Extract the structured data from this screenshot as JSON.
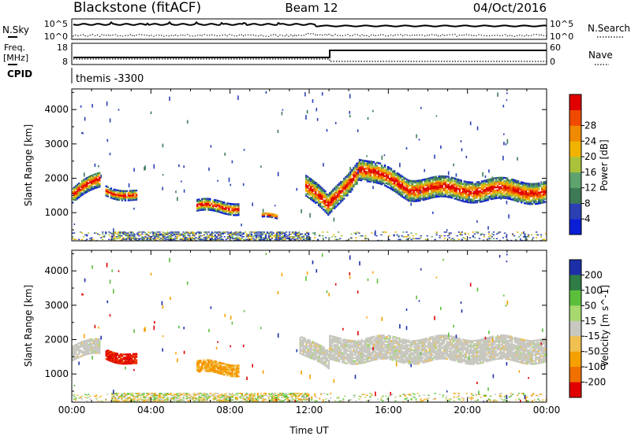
{
  "header": {
    "title_left": "Blackstone (fitACF)",
    "title_center": "Beam 12",
    "title_right": "04/Oct/2016"
  },
  "noise_panel": {
    "left_label": "N.Sky",
    "left_ticks": [
      "10^5",
      "10^0"
    ],
    "right_label": "N.Search",
    "right_ticks": [
      "10^5",
      "10^0"
    ]
  },
  "freq_panel": {
    "left_label_1": "Freq.",
    "left_label_2": "[MHz]",
    "left_ticks": [
      "18",
      "8"
    ],
    "right_label": "Nave",
    "right_ticks": [
      "60",
      "0"
    ]
  },
  "cpid_panel": {
    "label": "CPID",
    "program": "themis -3300"
  },
  "chart_data": [
    {
      "type": "heatmap",
      "name": "power",
      "ylabel": "Slant Range [km]",
      "ylim": [
        180,
        4600
      ],
      "xlim": [
        0,
        24
      ],
      "yticks": [
        "1000",
        "2000",
        "3000",
        "4000"
      ],
      "ytick_values": [
        1000,
        2000,
        3000,
        4000
      ],
      "colorbar": {
        "label": "Power [dB]",
        "ticks": [
          "4",
          "8",
          "12",
          "16",
          "20",
          "24",
          "28"
        ],
        "colors": [
          "#0a1ed6",
          "#2c40b4",
          "#3d7a55",
          "#5ea26e",
          "#a9c23a",
          "#f0b400",
          "#f08a00",
          "#f04a00",
          "#e10000"
        ]
      },
      "echo_regions": [
        {
          "t0": 0.0,
          "t1": 1.4,
          "center_km": [
            1500,
            1950
          ],
          "width_km": 450
        },
        {
          "t0": 1.7,
          "t1": 3.3,
          "center_km": [
            1650,
            1450
          ],
          "width_km": 280
        },
        {
          "t0": 6.3,
          "t1": 8.4,
          "center_km": [
            1150,
            1150
          ],
          "width_km": 320
        },
        {
          "t0": 9.6,
          "t1": 10.4,
          "center_km": [
            850,
            850
          ],
          "width_km": 120
        },
        {
          "t0": 11.8,
          "t1": 13.0,
          "center_km": [
            1800,
            1100
          ],
          "width_km": 600
        },
        {
          "t0": 13.0,
          "t1": 14.5,
          "center_km": [
            1200,
            2300
          ],
          "width_km": 600
        },
        {
          "t0": 14.5,
          "t1": 17.0,
          "center_km": [
            2300,
            1700
          ],
          "width_km": 600
        },
        {
          "t0": 17.0,
          "t1": 24.0,
          "center_km": [
            1700,
            1600
          ],
          "width_km": 600
        }
      ]
    },
    {
      "type": "heatmap",
      "name": "velocity",
      "xlabel": "Time UT",
      "ylabel": "Slant Range [km]",
      "ylim": [
        180,
        4600
      ],
      "xlim": [
        0,
        24
      ],
      "xticks": [
        "00:00",
        "04:00",
        "08:00",
        "12:00",
        "16:00",
        "20:00",
        "00:00"
      ],
      "yticks": [
        "1000",
        "2000",
        "3000",
        "4000"
      ],
      "ytick_values": [
        1000,
        2000,
        3000,
        4000
      ],
      "colorbar": {
        "label": "Velocity [m s^-1]",
        "ticks": [
          "200",
          "100",
          "50",
          "15",
          "-15",
          "-50",
          "-100",
          "-200"
        ],
        "colors": [
          "#1d2fa8",
          "#2f7c46",
          "#5bbf3c",
          "#a6d86e",
          "#c8c8c0",
          "#f0c050",
          "#f5a000",
          "#f07000",
          "#e00000"
        ]
      },
      "echo_regions": [
        {
          "t0": 0.0,
          "t1": 1.4,
          "center_km": [
            1600,
            1800
          ],
          "width_km": 450,
          "velocity": 0
        },
        {
          "t0": 1.7,
          "t1": 3.3,
          "center_km": [
            1600,
            1400
          ],
          "width_km": 300,
          "velocity": -200
        },
        {
          "t0": 6.3,
          "t1": 8.4,
          "center_km": [
            1150,
            1150
          ],
          "width_km": 320,
          "velocity": -60
        },
        {
          "t0": 11.5,
          "t1": 13.0,
          "center_km": [
            1900,
            1300
          ],
          "width_km": 500,
          "velocity": 0
        },
        {
          "t0": 13.0,
          "t1": 24.0,
          "center_km": [
            1700,
            1700
          ],
          "width_km": 700,
          "velocity": 0
        }
      ]
    }
  ]
}
